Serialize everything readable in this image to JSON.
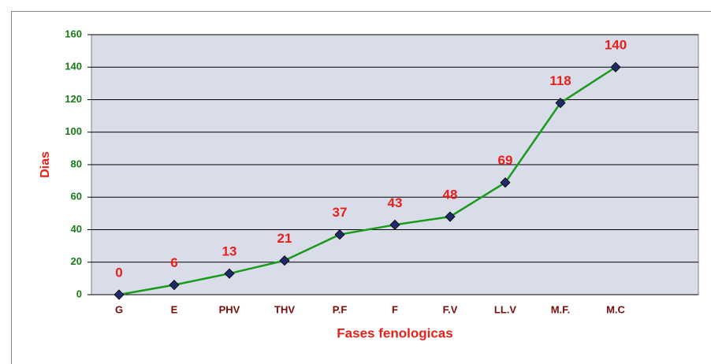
{
  "chart_data": {
    "type": "line",
    "categories": [
      "G",
      "E",
      "PHV",
      "THV",
      "P.F",
      "F",
      "F.V",
      "LL.V",
      "M.F.",
      "M.C"
    ],
    "values": [
      0,
      6,
      13,
      21,
      37,
      43,
      48,
      69,
      118,
      140
    ],
    "color": "#1a9a1a",
    "marker_color": "#1f2a6b",
    "ylim": [
      0,
      160
    ],
    "yticks": [
      0,
      20,
      40,
      60,
      80,
      100,
      120,
      140,
      160
    ],
    "grid": true,
    "y_label": "Dias",
    "x_label": "Fases fenologicas"
  }
}
